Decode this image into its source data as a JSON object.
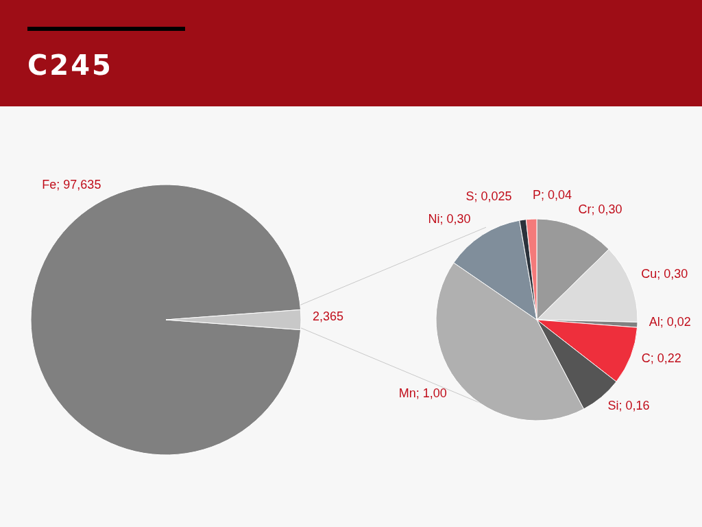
{
  "chart_data": [
    {
      "type": "pie",
      "title": "C245",
      "categories": [
        "Fe",
        null
      ],
      "values": [
        97.635,
        2.365
      ],
      "colors": [
        "#808080",
        "#c8c8c8"
      ],
      "value_labels": [
        "97,635",
        "2,365"
      ]
    },
    {
      "type": "pie",
      "categories": [
        "Cr",
        "Cu",
        "Al",
        "C",
        "Si",
        "Mn",
        "Ni",
        "S",
        "P"
      ],
      "values": [
        0.3,
        0.3,
        0.02,
        0.22,
        0.16,
        1.0,
        0.3,
        0.025,
        0.04
      ],
      "colors": [
        "#9a9a9a",
        "#dcdcdc",
        "#808080",
        "#ee2f3c",
        "#555555",
        "#b0b0b0",
        "#808e9b",
        "#2b323b",
        "#f47a7a"
      ],
      "value_labels": [
        "0,30",
        "0,30",
        "0,02",
        "0,22",
        "0,16",
        "1,00",
        "0,30",
        "0,025",
        "0,04"
      ]
    }
  ]
}
